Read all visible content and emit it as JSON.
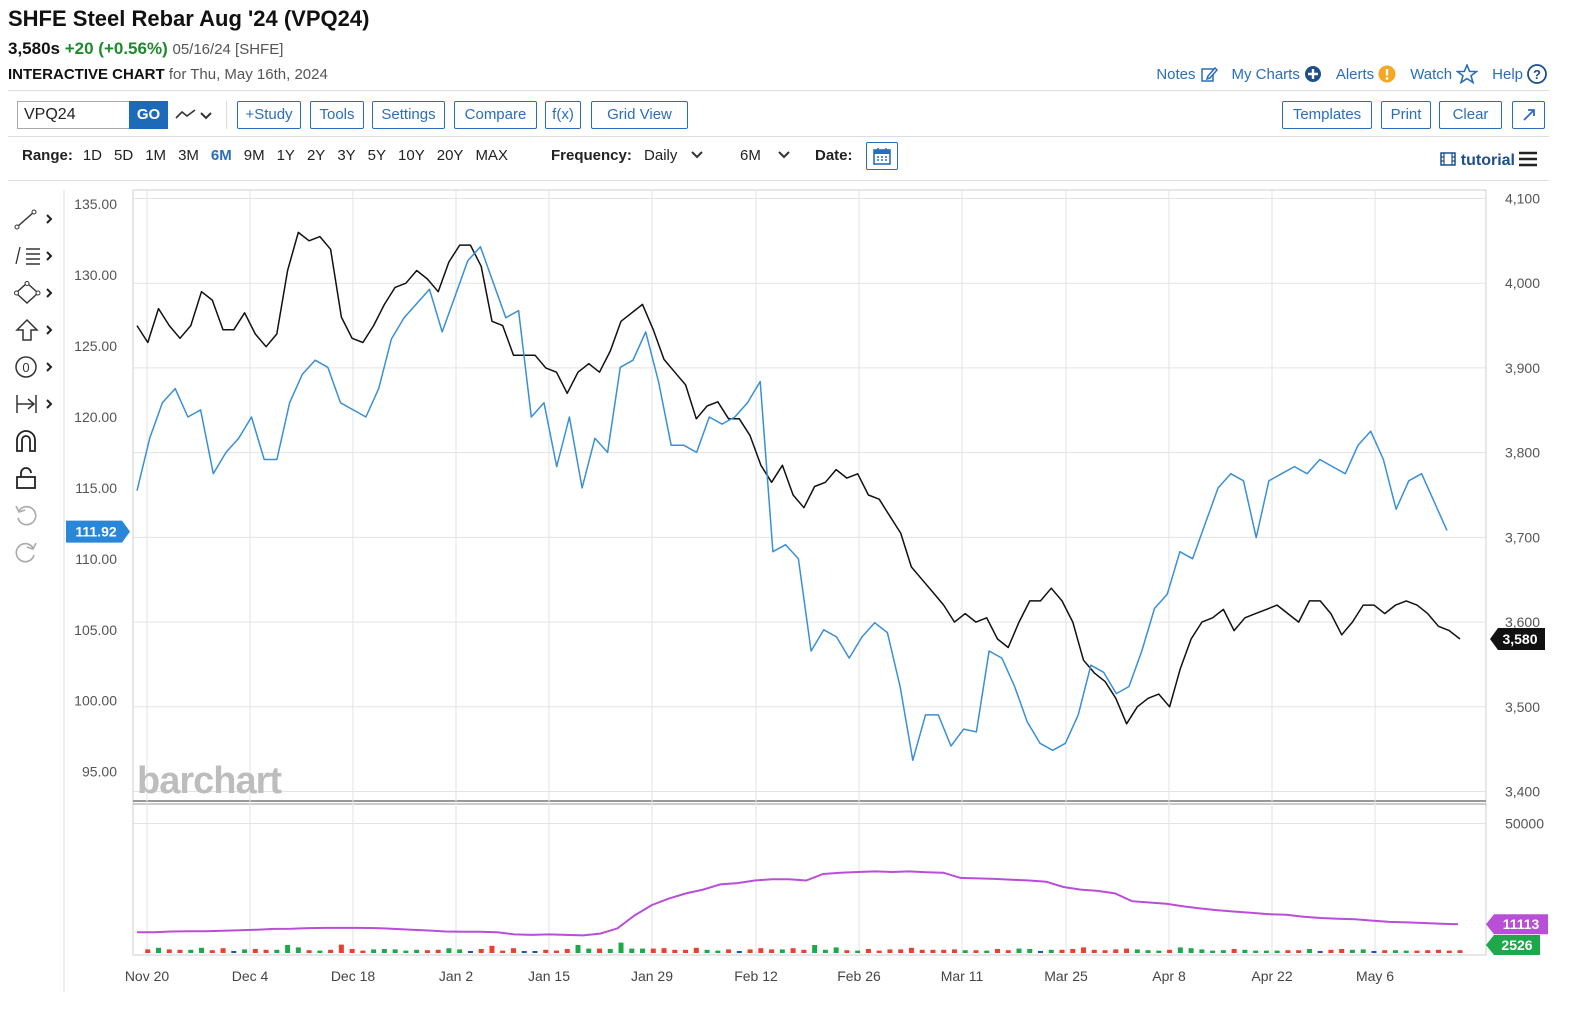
{
  "header": {
    "title": "SHFE Steel Rebar Aug '24 (VPQ24)",
    "price": "3,580s",
    "change": "+20 (+0.56%)",
    "meta": "05/16/24 [SHFE]",
    "subtitle_bold": "INTERACTIVE CHART",
    "subtitle_rest": "for Thu, May 16th, 2024",
    "links": [
      "Notes",
      "My Charts",
      "Alerts",
      "Watch",
      "Help"
    ]
  },
  "toolbar": {
    "symbol": "VPQ24",
    "go": "GO",
    "buttons": [
      "+Study",
      "Tools",
      "Settings",
      "Compare",
      "f(x)",
      "Grid View"
    ],
    "right_buttons": [
      "Templates",
      "Print",
      "Clear"
    ]
  },
  "rangebar": {
    "label": "Range:",
    "options": [
      "1D",
      "5D",
      "1M",
      "3M",
      "6M",
      "9M",
      "1Y",
      "2Y",
      "3Y",
      "5Y",
      "10Y",
      "20Y",
      "MAX"
    ],
    "active": "6M",
    "frequency_label": "Frequency:",
    "frequency_value": "Daily",
    "period_value": "6M",
    "date_label": "Date:",
    "tutorial": "tutorial"
  },
  "watermark": "barchart",
  "colors": {
    "link": "#2a6ebb",
    "price_line": "#111111",
    "compare_line": "#3a8fd6",
    "open_interest": "#b94fd6",
    "volume_up": "#1fa84a",
    "volume_down": "#e8412c",
    "volume_flat": "#2a4fb5"
  },
  "chart_data": {
    "type": "line",
    "x_ticks": [
      "Nov 20",
      "Dec 4",
      "Dec 18",
      "Jan 2",
      "Jan 15",
      "Jan 29",
      "Feb 12",
      "Feb 26",
      "Mar 11",
      "Mar 25",
      "Apr 8",
      "Apr 22",
      "May 6"
    ],
    "left_axis": {
      "ticks": [
        "135.00",
        "130.00",
        "125.00",
        "120.00",
        "115.00",
        "110.00",
        "105.00",
        "100.00",
        "95.00"
      ],
      "ylim": [
        93.0,
        136.0
      ],
      "current_label": "111.92"
    },
    "right_axis": {
      "ticks": [
        "4,100",
        "4,000",
        "3,900",
        "3,800",
        "3,700",
        "3,600",
        "3,500",
        "3,400"
      ],
      "ylim": [
        3390,
        4110
      ],
      "current_label": "3,580"
    },
    "series": [
      {
        "name": "VPQ24",
        "axis": "right",
        "values": [
          3950,
          3930,
          3970,
          3950,
          3935,
          3950,
          3990,
          3980,
          3945,
          3945,
          3965,
          3940,
          3925,
          3940,
          4015,
          4060,
          4050,
          4055,
          4040,
          3960,
          3935,
          3930,
          3950,
          3975,
          3995,
          4000,
          4015,
          4005,
          3990,
          4025,
          4045,
          4045,
          4020,
          3955,
          3950,
          3915,
          3915,
          3915,
          3900,
          3895,
          3870,
          3895,
          3905,
          3895,
          3920,
          3955,
          3965,
          3975,
          3945,
          3910,
          3895,
          3880,
          3840,
          3855,
          3860,
          3840,
          3840,
          3820,
          3785,
          3765,
          3785,
          3750,
          3735,
          3760,
          3765,
          3780,
          3770,
          3775,
          3750,
          3745,
          3725,
          3705,
          3665,
          3650,
          3635,
          3620,
          3600,
          3610,
          3600,
          3605,
          3580,
          3570,
          3600,
          3625,
          3625,
          3640,
          3625,
          3600,
          3555,
          3540,
          3530,
          3510,
          3480,
          3500,
          3510,
          3515,
          3500,
          3545,
          3580,
          3600,
          3605,
          3615,
          3590,
          3605,
          3610,
          3615,
          3620,
          3610,
          3600,
          3625,
          3625,
          3610,
          3585,
          3600,
          3620,
          3620,
          3610,
          3620,
          3625,
          3620,
          3610,
          3595,
          3590,
          3580
        ],
        "note": "values approximate daily closes"
      },
      {
        "name": "compare",
        "axis": "left",
        "values": [
          114.8,
          118.5,
          121.0,
          122.0,
          120.0,
          120.5,
          116.0,
          117.5,
          118.5,
          120.0,
          117.0,
          117.0,
          121.0,
          123.0,
          124.0,
          123.5,
          121.0,
          120.5,
          120.0,
          122.0,
          125.5,
          127.0,
          128.0,
          129.0,
          126.0,
          128.5,
          131.0,
          132.0,
          129.5,
          127.0,
          127.5,
          120.0,
          121.0,
          116.5,
          120.0,
          115.0,
          118.5,
          117.5,
          123.5,
          124.0,
          126.0,
          122.5,
          118.0,
          118.0,
          117.5,
          120.0,
          119.5,
          120.0,
          121.0,
          122.5,
          110.5,
          111.0,
          110.0,
          103.5,
          105.0,
          104.5,
          103.0,
          104.5,
          105.5,
          104.8,
          101.0,
          95.8,
          99.0,
          99.0,
          96.8,
          98.0,
          97.8,
          103.5,
          103.0,
          101.0,
          98.5,
          97.0,
          96.5,
          97.0,
          99.0,
          102.5,
          102.0,
          100.5,
          101.0,
          103.5,
          106.5,
          107.5,
          110.5,
          110.0,
          112.5,
          115.0,
          116.0,
          115.5,
          111.5,
          115.5,
          116.0,
          116.5,
          116.0,
          117.0,
          116.5,
          116.0,
          118.0,
          119.0,
          117.0,
          113.5,
          115.5,
          116.0,
          114.0,
          112.0
        ],
        "note": "values approximate"
      }
    ],
    "lower_panel": {
      "right_ticks": [
        "50000"
      ],
      "open_interest_label": "11113",
      "volume_label": "2526",
      "open_interest": [
        8000,
        8000,
        8300,
        8400,
        8400,
        8600,
        8800,
        9000,
        9300,
        9400,
        9600,
        9700,
        9700,
        9700,
        9600,
        9300,
        9000,
        8700,
        8300,
        8200,
        8200,
        8000,
        7200,
        7000,
        7200,
        7000,
        6800,
        7500,
        9500,
        14500,
        18500,
        21000,
        23000,
        24500,
        26500,
        27000,
        28000,
        28500,
        28500,
        28000,
        30500,
        31000,
        31300,
        31500,
        31300,
        31500,
        31200,
        31000,
        29000,
        28800,
        28600,
        28300,
        28000,
        27500,
        25500,
        24500,
        24000,
        23000,
        20000,
        19500,
        19000,
        18000,
        17200,
        16500,
        16000,
        15500,
        15000,
        14800,
        14000,
        13500,
        13200,
        13000,
        12500,
        12000,
        11800,
        11600,
        11300,
        11113
      ],
      "note": "open interest approximate"
    }
  }
}
